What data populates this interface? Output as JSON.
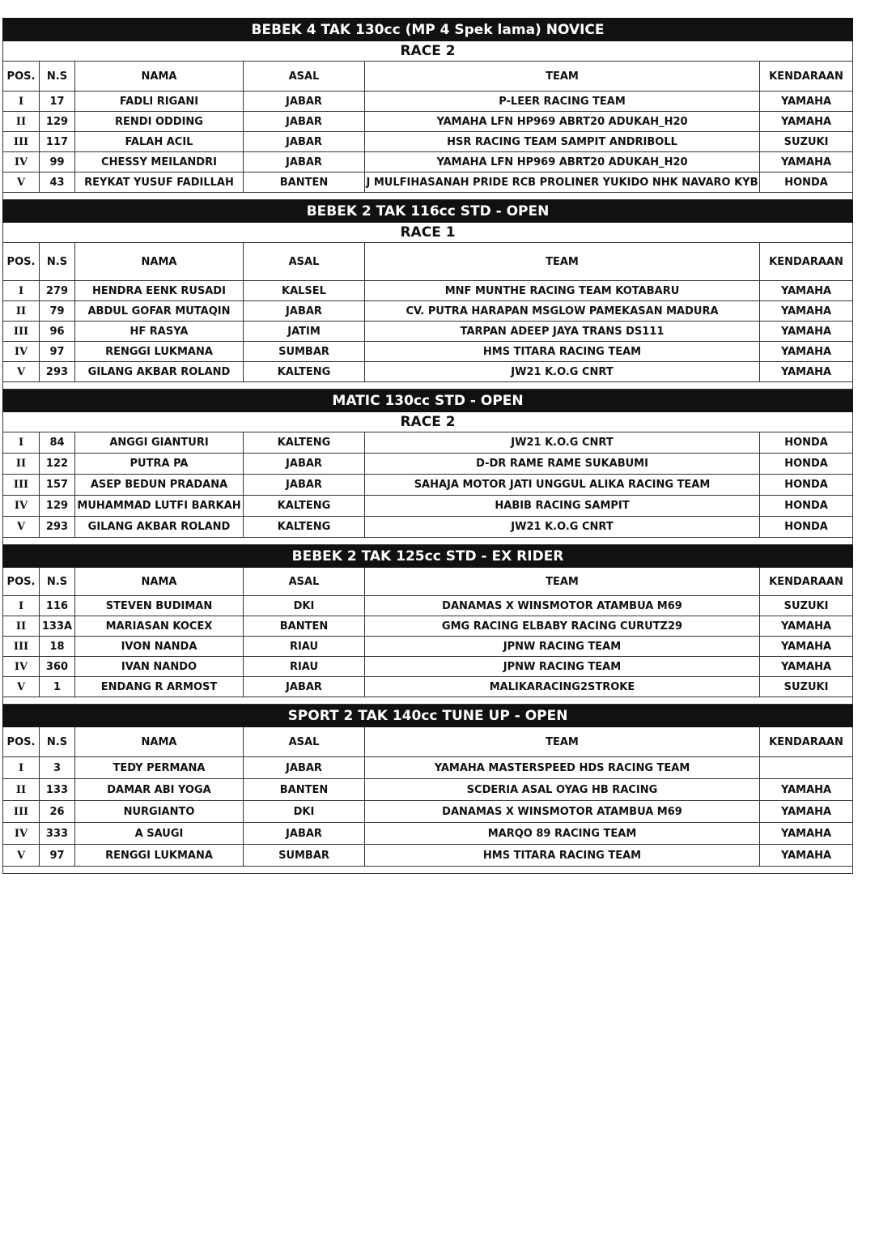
{
  "columns": [
    "POS.",
    "N.S",
    "NAMA",
    "ASAL",
    "TEAM",
    "KENDARAAN"
  ],
  "sections": [
    {
      "title": "BEBEK 4 TAK 130cc (MP 4 Spek lama) NOVICE",
      "race": "RACE 2",
      "show_header": true,
      "rows": [
        [
          "I",
          "17",
          "FADLI RIGANI",
          "JABAR",
          "P-LEER RACING TEAM",
          "YAMAHA"
        ],
        [
          "II",
          "129",
          "RENDI ODDING",
          "JABAR",
          "YAMAHA LFN HP969 ABRT20 ADUKAH_H20",
          "YAMAHA"
        ],
        [
          "III",
          "117",
          "FALAH ACIL",
          "JABAR",
          "HSR RACING TEAM SAMPIT ANDRIBOLL",
          "SUZUKI"
        ],
        [
          "IV",
          "99",
          "CHESSY MEILANDRI",
          "JABAR",
          "YAMAHA LFN HP969 ABRT20 ADUKAH_H20",
          "YAMAHA"
        ],
        [
          "V",
          "43",
          "REYKAT YUSUF FADILLAH",
          "BANTEN",
          "J MULFIHASANAH PRIDE RCB PROLINER YUKIDO NHK NAVARO KYB",
          "HONDA"
        ]
      ]
    },
    {
      "title": "BEBEK 2 TAK 116cc STD - OPEN",
      "race": "RACE 1",
      "show_header": true,
      "rows": [
        [
          "I",
          "279",
          "HENDRA EENK RUSADI",
          "KALSEL",
          "MNF MUNTHE RACING TEAM KOTABARU",
          "YAMAHA"
        ],
        [
          "II",
          "79",
          "ABDUL GOFAR MUTAQIN",
          "JABAR",
          "CV. PUTRA HARAPAN MSGLOW PAMEKASAN MADURA",
          "YAMAHA"
        ],
        [
          "III",
          "96",
          "HF RASYA",
          "JATIM",
          "TARPAN ADEEP JAYA TRANS DS111",
          "YAMAHA"
        ],
        [
          "IV",
          "97",
          "RENGGI LUKMANA",
          "SUMBAR",
          "HMS TITARA RACING TEAM",
          "YAMAHA"
        ],
        [
          "V",
          "293",
          "GILANG AKBAR ROLAND",
          "KALTENG",
          "JW21 K.O.G CNRT",
          "YAMAHA"
        ]
      ]
    },
    {
      "title": "MATIC 130cc STD - OPEN",
      "race": "RACE 2",
      "show_header": false,
      "rows": [
        [
          "I",
          "84",
          "ANGGI GIANTURI",
          "KALTENG",
          "JW21 K.O.G CNRT",
          "HONDA"
        ],
        [
          "II",
          "122",
          "PUTRA PA",
          "JABAR",
          "D-DR RAME RAME SUKABUMI",
          "HONDA"
        ],
        [
          "III",
          "157",
          "ASEP BEDUN PRADANA",
          "JABAR",
          "SAHAJA MOTOR JATI UNGGUL ALIKA RACING TEAM",
          "HONDA"
        ],
        [
          "IV",
          "129",
          "MUHAMMAD LUTFI BARKAH",
          "KALTENG",
          "HABIB RACING SAMPIT",
          "HONDA"
        ],
        [
          "V",
          "293",
          "GILANG AKBAR ROLAND",
          "KALTENG",
          "JW21 K.O.G CNRT",
          "HONDA"
        ]
      ]
    },
    {
      "title": "BEBEK 2 TAK 125cc STD - EX RIDER",
      "race": "",
      "show_header": true,
      "rows": [
        [
          "I",
          "116",
          "STEVEN BUDIMAN",
          "DKI",
          "DANAMAS X WINSMOTOR ATAMBUA M69",
          "SUZUKI"
        ],
        [
          "II",
          "133A",
          "MARIASAN KOCEX",
          "BANTEN",
          "GMG RACING ELBABY RACING CURUTZ29",
          "YAMAHA"
        ],
        [
          "III",
          "18",
          "IVON NANDA",
          "RIAU",
          "JPNW RACING TEAM",
          "YAMAHA"
        ],
        [
          "IV",
          "360",
          "IVAN NANDO",
          "RIAU",
          "JPNW RACING TEAM",
          "YAMAHA"
        ],
        [
          "V",
          "1",
          "ENDANG R ARMOST",
          "JABAR",
          "MALIKARACING2STROKE",
          "SUZUKI"
        ]
      ]
    },
    {
      "title": "SPORT 2 TAK 140cc TUNE UP - OPEN",
      "race": "",
      "show_header": true,
      "rows": [
        [
          "I",
          "3",
          "TEDY PERMANA",
          "JABAR",
          "YAMAHA MASTERSPEED HDS RACING TEAM",
          ""
        ],
        [
          "II",
          "133",
          "DAMAR ABI YOGA",
          "BANTEN",
          "SCDERIA ASAL OYAG HB RACING",
          "YAMAHA"
        ],
        [
          "III",
          "26",
          "NURGIANTO",
          "DKI",
          "DANAMAS X WINSMOTOR ATAMBUA M69",
          "YAMAHA"
        ],
        [
          "IV",
          "333",
          "A SAUGI",
          "JABAR",
          "MARQO 89 RACING TEAM",
          "YAMAHA"
        ],
        [
          "V",
          "97",
          "RENGGI LUKMANA",
          "SUMBAR",
          "HMS TITARA RACING TEAM",
          "YAMAHA"
        ]
      ]
    }
  ]
}
